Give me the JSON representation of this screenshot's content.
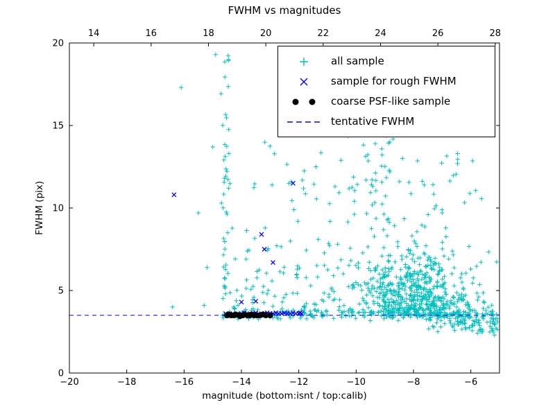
{
  "chart_data": {
    "type": "scatter",
    "title": "FWHM vs magnitudes",
    "xlabel": "magnitude (bottom:isnt / top:calib)",
    "ylabel": "FWHM (pix)",
    "xlim": [
      -20,
      -5
    ],
    "ylim": [
      0,
      20
    ],
    "x_ticks_bottom": [
      -20,
      -18,
      -16,
      -14,
      -12,
      -10,
      -8,
      -6
    ],
    "x_top_lim": [
      13.15,
      28.15
    ],
    "x_ticks_top": [
      14,
      16,
      18,
      20,
      22,
      24,
      26,
      28
    ],
    "y_ticks": [
      0,
      5,
      10,
      15,
      20
    ],
    "grid": false,
    "legend_position": "upper right",
    "frame_color": "#000000",
    "series": [
      {
        "name": "all sample",
        "marker": "plus",
        "color": "#00bfbf",
        "seed": 42,
        "clusters": [
          {
            "n": 420,
            "x": {
              "dist": "normal",
              "mean": -8.0,
              "sd": 1.0,
              "min": -10.8,
              "max": -5.1
            },
            "y": {
              "dist": "halfnormal",
              "base": 3.35,
              "sd": 1.7,
              "max": 19.5
            }
          },
          {
            "n": 230,
            "x": {
              "dist": "normal",
              "mean": -8.4,
              "sd": 1.3,
              "min": -11.6,
              "max": -5.1
            },
            "y": {
              "dist": "exp",
              "base": 3.5,
              "scale": 2.4,
              "max": 19.0
            }
          },
          {
            "n": 150,
            "x": {
              "dist": "uniform",
              "min": -14.7,
              "max": -5.2
            },
            "y": {
              "dist": "normal",
              "mean": 3.55,
              "sd": 0.18,
              "min": 2.6,
              "max": 4.6
            }
          },
          {
            "n": 80,
            "x": {
              "dist": "uniform",
              "min": -7.6,
              "max": -5.05
            },
            "y": {
              "dist": "normal",
              "mean": 3.3,
              "sd": 0.55,
              "min": 2.3,
              "max": 4.8
            }
          },
          {
            "n": 45,
            "x": {
              "dist": "normal",
              "mean": -14.55,
              "sd": 0.07,
              "min": -14.8,
              "max": -14.3
            },
            "y": {
              "dist": "uniform",
              "min": 3.6,
              "max": 19.8
            }
          },
          {
            "n": 110,
            "x": {
              "dist": "uniform",
              "min": -14.4,
              "max": -10.5
            },
            "y": {
              "dist": "exp",
              "base": 3.7,
              "scale": 3.2,
              "max": 18.0
            }
          },
          {
            "n": 55,
            "x": {
              "dist": "uniform",
              "min": -11.0,
              "max": -5.6
            },
            "y": {
              "dist": "uniform",
              "min": 10.0,
              "max": 19.8
            }
          },
          {
            "n": 30,
            "x": {
              "dist": "uniform",
              "min": -10.4,
              "max": -8.8
            },
            "y": {
              "dist": "uniform",
              "min": 8.0,
              "max": 16.5
            }
          },
          {
            "n": 35,
            "x": {
              "dist": "uniform",
              "min": -6.6,
              "max": -5.05
            },
            "y": {
              "dist": "uniform",
              "min": 2.4,
              "max": 3.4
            }
          }
        ],
        "outliers": [
          [
            -16.1,
            17.3
          ],
          [
            -15.5,
            9.7
          ],
          [
            -15.2,
            6.4
          ],
          [
            -16.4,
            4.0
          ],
          [
            -15.0,
            13.7
          ],
          [
            -15.3,
            4.1
          ],
          [
            -14.9,
            19.3
          ]
        ]
      },
      {
        "name": "sample for rough FWHM",
        "marker": "x",
        "color": "#0000ff",
        "points": [
          [
            -16.35,
            10.8
          ],
          [
            -14.55,
            3.6
          ],
          [
            -14.45,
            3.55
          ],
          [
            -14.3,
            3.6
          ],
          [
            -14.15,
            3.55
          ],
          [
            -14.0,
            4.3
          ],
          [
            -14.0,
            3.6
          ],
          [
            -13.9,
            3.65
          ],
          [
            -13.8,
            3.55
          ],
          [
            -13.7,
            3.6
          ],
          [
            -13.6,
            3.6
          ],
          [
            -13.5,
            4.35
          ],
          [
            -13.5,
            3.65
          ],
          [
            -13.4,
            3.55
          ],
          [
            -13.3,
            8.4
          ],
          [
            -13.3,
            3.6
          ],
          [
            -13.2,
            7.5
          ],
          [
            -13.2,
            3.6
          ],
          [
            -13.1,
            3.65
          ],
          [
            -13.0,
            3.6
          ],
          [
            -12.9,
            6.7
          ],
          [
            -12.9,
            3.6
          ],
          [
            -12.8,
            3.65
          ],
          [
            -12.7,
            3.6
          ],
          [
            -12.6,
            3.6
          ],
          [
            -12.2,
            11.5
          ],
          [
            -12.5,
            3.65
          ],
          [
            -12.4,
            3.6
          ],
          [
            -12.3,
            3.6
          ],
          [
            -12.2,
            3.65
          ],
          [
            -12.1,
            3.6
          ],
          [
            -12.0,
            3.6
          ],
          [
            -11.95,
            3.65
          ],
          [
            -11.9,
            3.6
          ]
        ]
      },
      {
        "name": "coarse PSF-like sample",
        "marker": "circle",
        "color": "#000000",
        "points": [
          [
            -14.5,
            3.5
          ],
          [
            -14.45,
            3.55
          ],
          [
            -14.35,
            3.5
          ],
          [
            -14.25,
            3.5
          ],
          [
            -14.2,
            3.55
          ],
          [
            -14.1,
            3.5
          ],
          [
            -14.05,
            3.45
          ],
          [
            -13.95,
            3.5
          ],
          [
            -13.9,
            3.55
          ],
          [
            -13.8,
            3.5
          ],
          [
            -13.7,
            3.5
          ],
          [
            -13.65,
            3.55
          ],
          [
            -13.55,
            3.5
          ],
          [
            -13.45,
            3.5
          ],
          [
            -13.35,
            3.5
          ],
          [
            -13.25,
            3.55
          ],
          [
            -13.15,
            3.5
          ],
          [
            -13.0,
            3.5
          ]
        ]
      },
      {
        "name": "tentative FWHM",
        "marker": "dashed-line",
        "color": "#0000ff",
        "y": 3.5
      }
    ]
  }
}
